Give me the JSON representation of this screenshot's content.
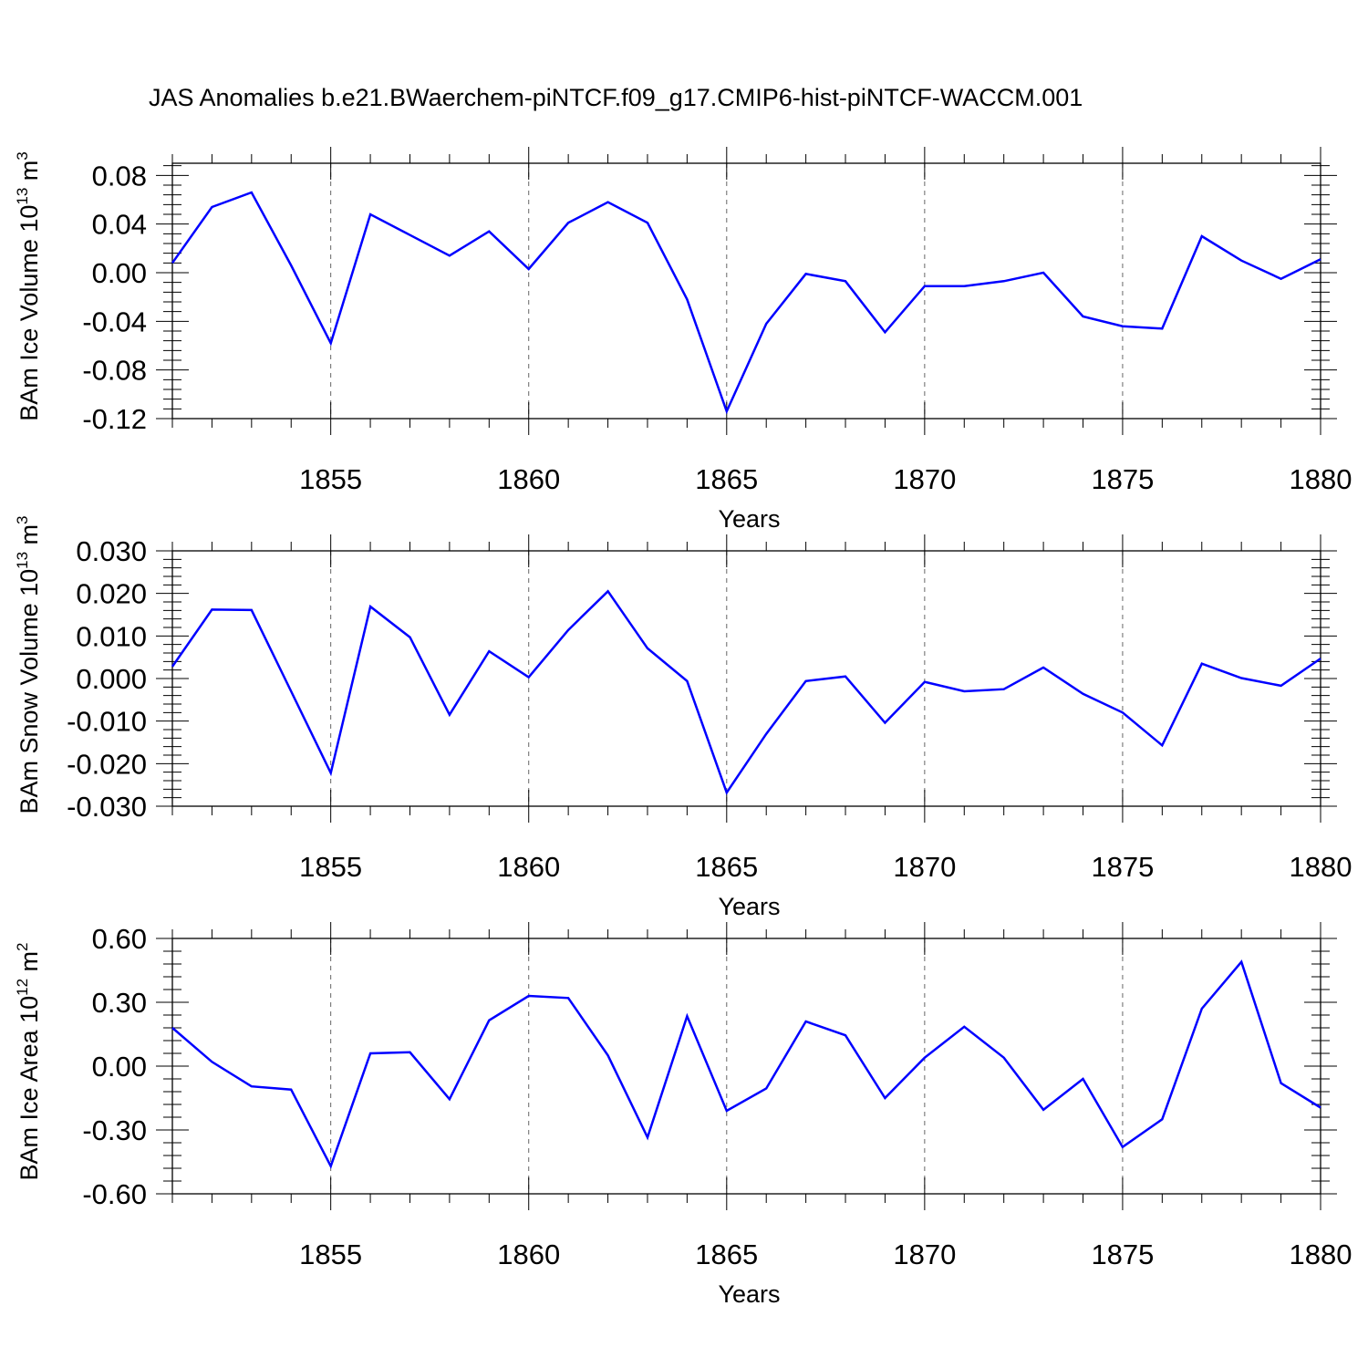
{
  "title": "JAS Anomalies b.e21.BWaerchem-piNTCF.f09_g17.CMIP6-hist-piNTCF-WACCM.001",
  "colors": {
    "line": "#0000ff",
    "frame": "#000000",
    "grid": "#666666"
  },
  "chart_data": [
    {
      "type": "line",
      "ylabel_main": "BAm Ice Volume 10",
      "ylabel_exp": "13",
      "ylabel_unit": " m",
      "ylabel_unit_exp": "3",
      "xlabel": "Years",
      "xlim": [
        1851,
        1880
      ],
      "ylim": [
        -0.12,
        0.09
      ],
      "yticks": [
        -0.12,
        -0.08,
        -0.04,
        0.0,
        0.04,
        0.08
      ],
      "ytick_labels": [
        "-0.12",
        "-0.08",
        "-0.04",
        "0.00",
        "0.04",
        "0.08"
      ],
      "xticks": [
        1855,
        1860,
        1865,
        1870,
        1875,
        1880
      ],
      "xtick_labels": [
        "1855",
        "1860",
        "1865",
        "1870",
        "1875",
        "1880"
      ],
      "x": [
        1851,
        1852,
        1853,
        1854,
        1855,
        1856,
        1857,
        1858,
        1859,
        1860,
        1861,
        1862,
        1863,
        1864,
        1865,
        1866,
        1867,
        1868,
        1869,
        1870,
        1871,
        1872,
        1873,
        1874,
        1875,
        1876,
        1877,
        1878,
        1879,
        1880
      ],
      "values": [
        0.008,
        0.054,
        0.066,
        0.006,
        -0.058,
        0.048,
        0.031,
        0.014,
        0.034,
        0.003,
        0.041,
        0.058,
        0.041,
        -0.022,
        -0.114,
        -0.042,
        -0.001,
        -0.007,
        -0.049,
        -0.011,
        -0.011,
        -0.007,
        0.0,
        -0.036,
        -0.044,
        -0.046,
        0.03,
        0.01,
        -0.005,
        0.011
      ]
    },
    {
      "type": "line",
      "ylabel_main": "BAm Snow Volume 10",
      "ylabel_exp": "13",
      "ylabel_unit": " m",
      "ylabel_unit_exp": "3",
      "xlabel": "Years",
      "xlim": [
        1851,
        1880
      ],
      "ylim": [
        -0.03,
        0.03
      ],
      "yticks": [
        -0.03,
        -0.02,
        -0.01,
        0.0,
        0.01,
        0.02,
        0.03
      ],
      "ytick_labels": [
        "-0.030",
        "-0.020",
        "-0.010",
        "0.000",
        "0.010",
        "0.020",
        "0.030"
      ],
      "xticks": [
        1855,
        1860,
        1865,
        1870,
        1875,
        1880
      ],
      "xtick_labels": [
        "1855",
        "1860",
        "1865",
        "1870",
        "1875",
        "1880"
      ],
      "x": [
        1851,
        1852,
        1853,
        1854,
        1855,
        1856,
        1857,
        1858,
        1859,
        1860,
        1861,
        1862,
        1863,
        1864,
        1865,
        1866,
        1867,
        1868,
        1869,
        1870,
        1871,
        1872,
        1873,
        1874,
        1875,
        1876,
        1877,
        1878,
        1879,
        1880
      ],
      "values": [
        0.0028,
        0.0162,
        0.0161,
        -0.003,
        -0.0222,
        0.0169,
        0.0097,
        -0.0085,
        0.0064,
        0.0003,
        0.0114,
        0.0205,
        0.0071,
        -0.0006,
        -0.0268,
        -0.013,
        -0.0006,
        0.0005,
        -0.0104,
        -0.0008,
        -0.003,
        -0.0025,
        0.0026,
        -0.0036,
        -0.008,
        -0.0157,
        0.0035,
        0.0001,
        -0.0017,
        0.0047
      ]
    },
    {
      "type": "line",
      "ylabel_main": "BAm Ice Area 10",
      "ylabel_exp": "12",
      "ylabel_unit": " m",
      "ylabel_unit_exp": "2",
      "xlabel": "Years",
      "xlim": [
        1851,
        1880
      ],
      "ylim": [
        -0.6,
        0.6
      ],
      "yticks": [
        -0.6,
        -0.3,
        0.0,
        0.3,
        0.6
      ],
      "ytick_labels": [
        "-0.60",
        "-0.30",
        "0.00",
        "0.30",
        "0.60"
      ],
      "xticks": [
        1855,
        1860,
        1865,
        1870,
        1875,
        1880
      ],
      "xtick_labels": [
        "1855",
        "1860",
        "1865",
        "1870",
        "1875",
        "1880"
      ],
      "x": [
        1851,
        1852,
        1853,
        1854,
        1855,
        1856,
        1857,
        1858,
        1859,
        1860,
        1861,
        1862,
        1863,
        1864,
        1865,
        1866,
        1867,
        1868,
        1869,
        1870,
        1871,
        1872,
        1873,
        1874,
        1875,
        1876,
        1877,
        1878,
        1879,
        1880
      ],
      "values": [
        0.18,
        0.02,
        -0.095,
        -0.11,
        -0.47,
        0.06,
        0.065,
        -0.155,
        0.215,
        0.33,
        0.32,
        0.05,
        -0.335,
        0.235,
        -0.21,
        -0.105,
        0.21,
        0.145,
        -0.15,
        0.04,
        0.185,
        0.04,
        -0.205,
        -0.06,
        -0.38,
        -0.25,
        0.27,
        0.49,
        -0.08,
        -0.195
      ]
    }
  ]
}
